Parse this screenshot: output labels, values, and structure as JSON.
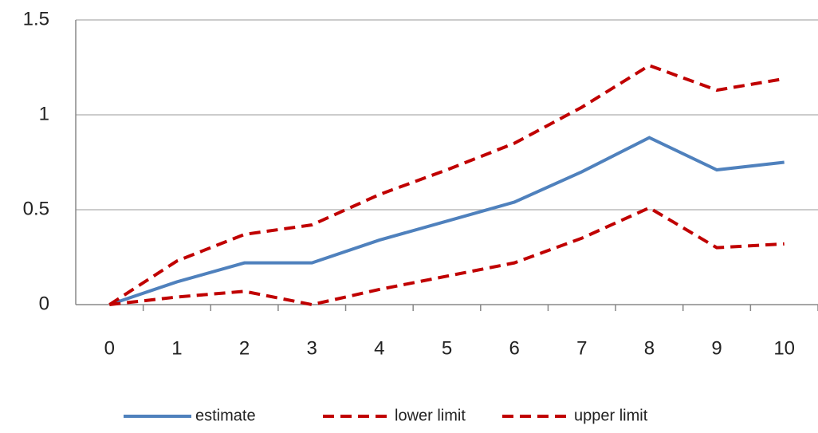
{
  "chart_data": {
    "type": "line",
    "categories": [
      "0",
      "1",
      "2",
      "3",
      "4",
      "5",
      "6",
      "7",
      "8",
      "9",
      "10"
    ],
    "series": [
      {
        "name": "estimate",
        "color": "#4f81bd",
        "dash": false,
        "values": [
          0,
          0.12,
          0.22,
          0.22,
          0.34,
          0.44,
          0.54,
          0.7,
          0.88,
          0.71,
          0.75
        ]
      },
      {
        "name": "lower limit",
        "color": "#c00000",
        "dash": true,
        "values": [
          0,
          0.04,
          0.07,
          0.0,
          0.08,
          0.15,
          0.22,
          0.35,
          0.51,
          0.3,
          0.32
        ]
      },
      {
        "name": "upper limit",
        "color": "#c00000",
        "dash": true,
        "values": [
          0,
          0.23,
          0.37,
          0.42,
          0.58,
          0.71,
          0.85,
          1.04,
          1.26,
          1.13,
          1.19
        ]
      }
    ],
    "ylim": [
      0,
      1.5
    ],
    "yticks": [
      0,
      0.5,
      1,
      1.5
    ],
    "grid": true,
    "legend": "bottom"
  }
}
